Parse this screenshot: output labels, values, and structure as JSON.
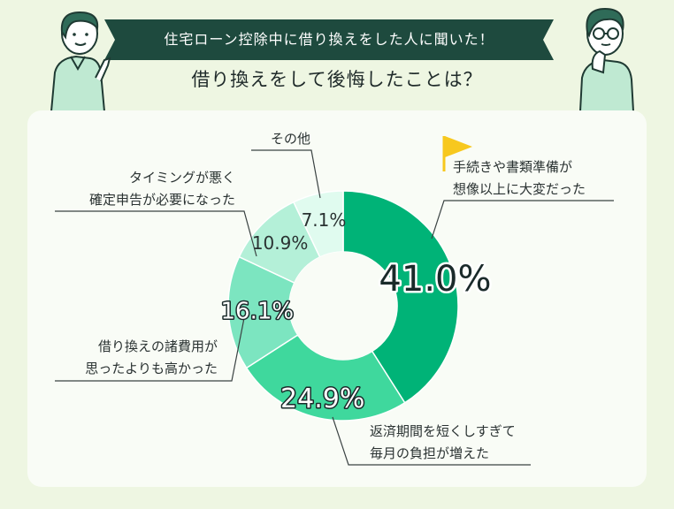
{
  "header": {
    "banner": "住宅ローン控除中に借り換えをした人に聞いた！",
    "question": "借り換えをして後悔したことは？"
  },
  "colors": {
    "banner_bg": "#1e4a3e",
    "accent": "#00b377",
    "flag": "#f7c81e"
  },
  "icons": [
    "person-left-illustration",
    "person-right-illustration",
    "flag-icon"
  ],
  "chart_data": {
    "type": "pie",
    "donut": true,
    "categories": [
      "手続きや書類準備が想像以上に大変だった",
      "返済期間を短くしすぎて毎月の負担が増えた",
      "借り換えの諸費用が思ったよりも高かった",
      "タイミングが悪く確定申告が必要になった",
      "その他"
    ],
    "values": [
      41.0,
      24.9,
      16.1,
      10.9,
      7.1
    ],
    "value_labels": [
      "41.0%",
      "24.9%",
      "16.1%",
      "10.9%",
      "7.1%"
    ],
    "label_lines": [
      [
        "手続きや書類準備が",
        "想像以上に大変だった"
      ],
      [
        "返済期間を短くしすぎて",
        "毎月の負担が増えた"
      ],
      [
        "借り換えの諸費用が",
        "思ったよりも高かった"
      ],
      [
        "タイミングが悪く",
        "確定申告が必要になった"
      ],
      [
        "その他"
      ]
    ],
    "colors": [
      "#00b377",
      "#3fd89d",
      "#7ce5c0",
      "#b4f0d8",
      "#e0fbef"
    ]
  }
}
